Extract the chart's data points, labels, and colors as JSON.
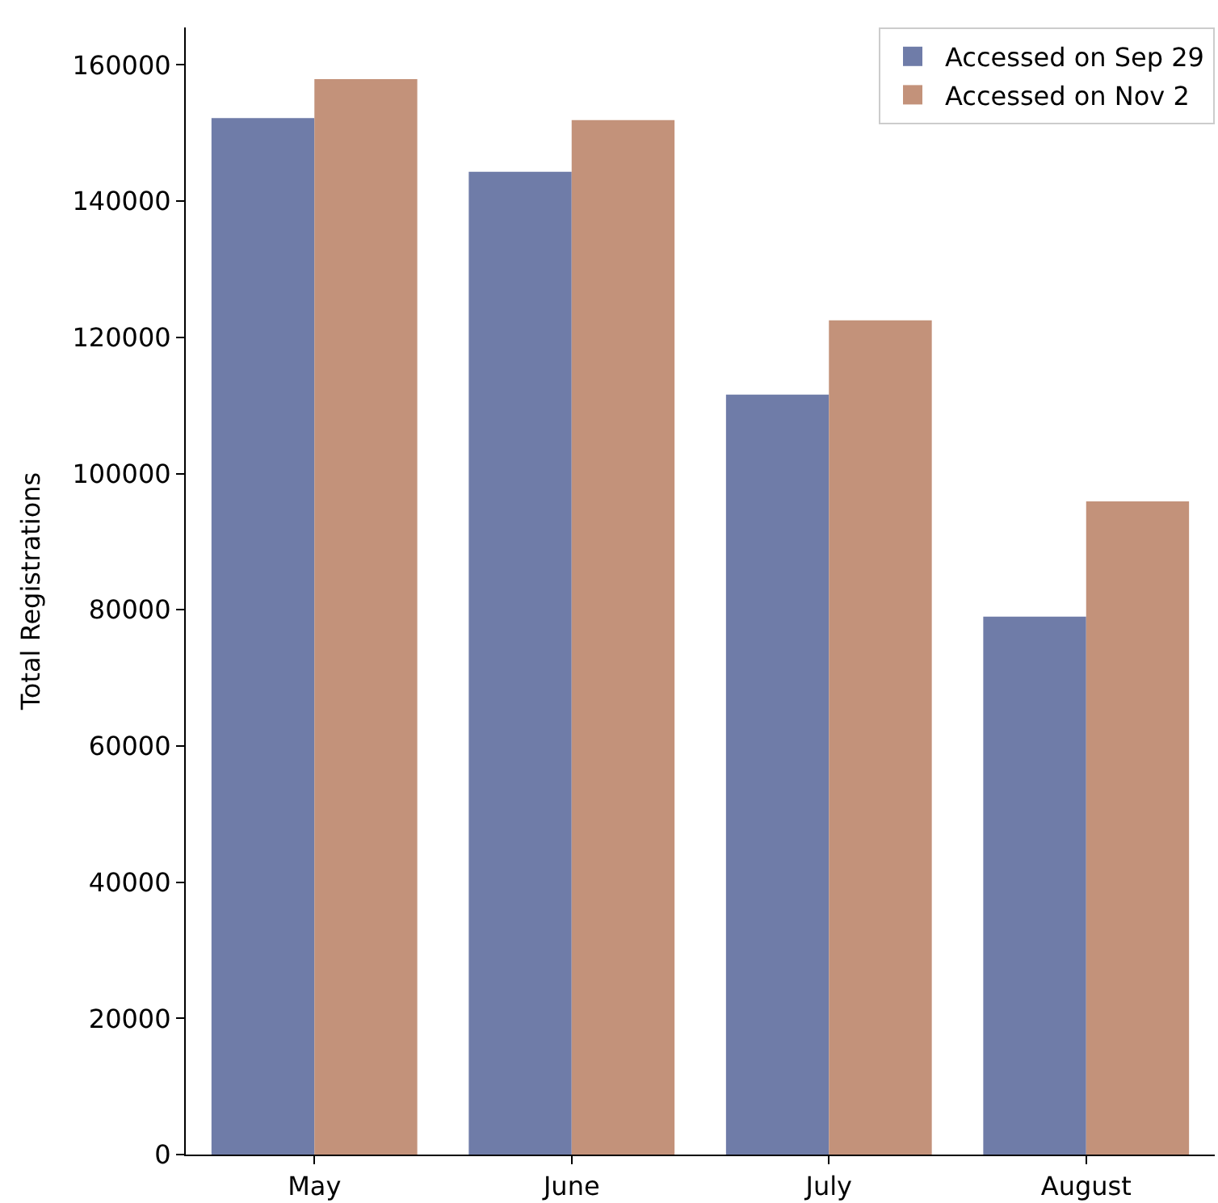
{
  "chart_data": {
    "type": "bar",
    "ylabel": "Total Registrations",
    "categories": [
      "May",
      "June",
      "July",
      "August"
    ],
    "series": [
      {
        "name": "Accessed on Sep 29",
        "color": "#6f7ca8",
        "values": [
          152200,
          144300,
          111600,
          79000
        ]
      },
      {
        "name": "Accessed on Nov 2",
        "color": "#c3927a",
        "values": [
          157900,
          151900,
          122500,
          95900
        ]
      }
    ],
    "ylim": [
      0,
      165500
    ],
    "yticks": [
      0,
      20000,
      40000,
      60000,
      80000,
      100000,
      120000,
      140000,
      160000
    ],
    "legend": "top right"
  }
}
